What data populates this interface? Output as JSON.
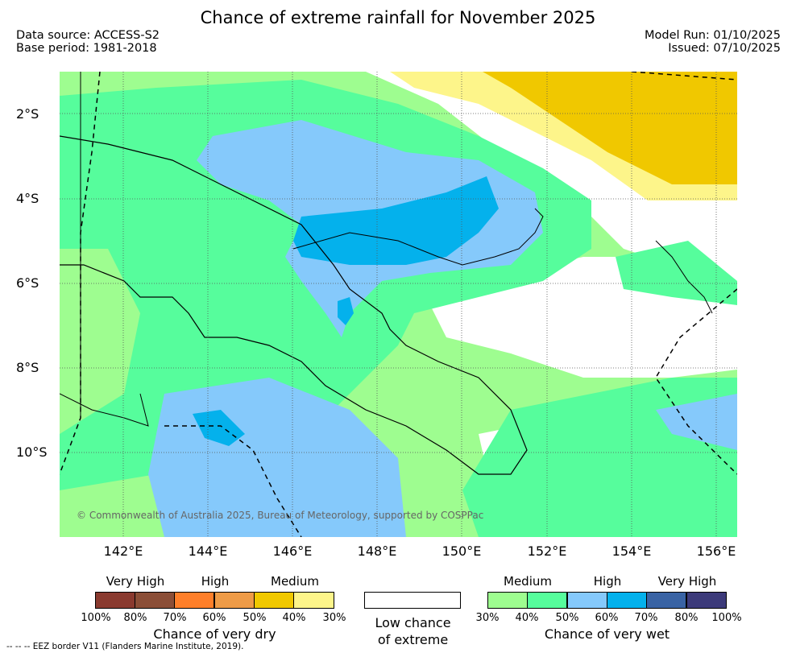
{
  "title": "Chance of extreme rainfall for November 2025",
  "data_source": "Data source: ACCESS-S2",
  "base_period": "Base period: 1981-2018",
  "model_run": "Model Run: 01/10/2025",
  "issued": "Issued: 07/10/2025",
  "map": {
    "lat_labels": [
      "2°S",
      "4°S",
      "6°S",
      "8°S",
      "10°S"
    ],
    "lon_labels": [
      "142°E",
      "144°E",
      "146°E",
      "148°E",
      "150°E",
      "152°E",
      "154°E",
      "156°E"
    ],
    "copyright": "© Commonwealth of Australia 2025, Bureau of Meteorology, supported by COSPPac",
    "colors": {
      "ocean_low": "#ffffff",
      "medium_30": "#9efd90",
      "medium_40": "#56fd9c",
      "high_50": "#85c9fb",
      "high_60": "#04b1ec",
      "dry_medium": "#f0c800",
      "dry_30": "#fdf58a"
    }
  },
  "legend": {
    "dry": {
      "group_labels": [
        "Very High",
        "High",
        "Medium"
      ],
      "colors": [
        "#8a3a2f",
        "#8b4e37",
        "#fe7f2a",
        "#ee9b47",
        "#f0c800",
        "#fdf58a"
      ],
      "ticks": [
        "100%",
        "80%",
        "70%",
        "60%",
        "50%",
        "40%",
        "30%"
      ],
      "title": "Chance of very dry"
    },
    "low": {
      "title_line1": "Low chance",
      "title_line2": "of extreme"
    },
    "wet": {
      "group_labels": [
        "Medium",
        "High",
        "Very High"
      ],
      "colors": [
        "#9efd90",
        "#56fd9c",
        "#85c9fb",
        "#04b1ec",
        "#3963a4",
        "#3c3a7a"
      ],
      "ticks": [
        "30%",
        "40%",
        "50%",
        "60%",
        "70%",
        "80%",
        "100%"
      ],
      "title": "Chance of very wet"
    }
  },
  "footnote": "-- -- -- EEZ border V11 (Flanders Marine Institute, 2019)."
}
